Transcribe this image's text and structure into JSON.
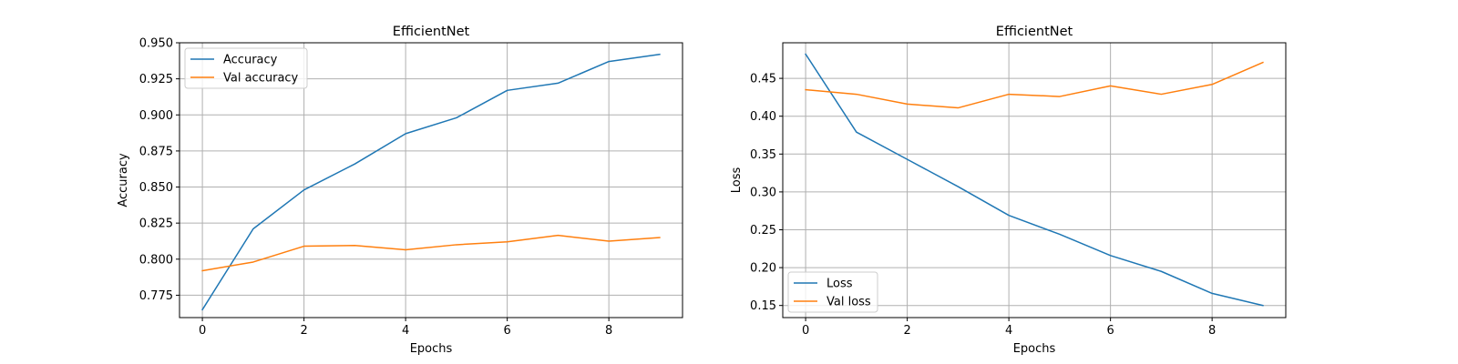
{
  "chart_data": [
    {
      "type": "line",
      "title": "EfficientNet",
      "xlabel": "Epochs",
      "ylabel": "Accuracy",
      "x": [
        0,
        1,
        2,
        3,
        4,
        5,
        6,
        7,
        8,
        9
      ],
      "xlim": [
        -0.45,
        9.45
      ],
      "ylim": [
        0.7595,
        0.95
      ],
      "xticks": [
        0,
        2,
        4,
        6,
        8
      ],
      "yticks": [
        0.775,
        0.8,
        0.825,
        0.85,
        0.875,
        0.9,
        0.925,
        0.95
      ],
      "ytick_labels": [
        "0.775",
        "0.800",
        "0.825",
        "0.850",
        "0.875",
        "0.900",
        "0.925",
        "0.950"
      ],
      "grid": true,
      "legend_position": "top-left",
      "series": [
        {
          "name": "Accuracy",
          "color": "#1f77b4",
          "values": [
            0.765,
            0.821,
            0.848,
            0.866,
            0.887,
            0.898,
            0.917,
            0.922,
            0.937,
            0.942
          ]
        },
        {
          "name": "Val accuracy",
          "color": "#ff7f0e",
          "values": [
            0.792,
            0.798,
            0.809,
            0.8095,
            0.8065,
            0.81,
            0.812,
            0.8165,
            0.8125,
            0.815
          ]
        }
      ]
    },
    {
      "type": "line",
      "title": "EfficientNet",
      "xlabel": "Epochs",
      "ylabel": "Loss",
      "x": [
        0,
        1,
        2,
        3,
        4,
        5,
        6,
        7,
        8,
        9
      ],
      "xlim": [
        -0.45,
        9.45
      ],
      "ylim": [
        0.134,
        0.497
      ],
      "xticks": [
        0,
        2,
        4,
        6,
        8
      ],
      "yticks": [
        0.15,
        0.2,
        0.25,
        0.3,
        0.35,
        0.4,
        0.45
      ],
      "ytick_labels": [
        "0.15",
        "0.20",
        "0.25",
        "0.30",
        "0.35",
        "0.40",
        "0.45"
      ],
      "grid": true,
      "legend_position": "bottom-left",
      "series": [
        {
          "name": "Loss",
          "color": "#1f77b4",
          "values": [
            0.482,
            0.379,
            0.343,
            0.307,
            0.269,
            0.244,
            0.216,
            0.195,
            0.166,
            0.15
          ]
        },
        {
          "name": "Val loss",
          "color": "#ff7f0e",
          "values": [
            0.435,
            0.429,
            0.416,
            0.411,
            0.429,
            0.426,
            0.44,
            0.429,
            0.442,
            0.471
          ]
        }
      ]
    }
  ]
}
